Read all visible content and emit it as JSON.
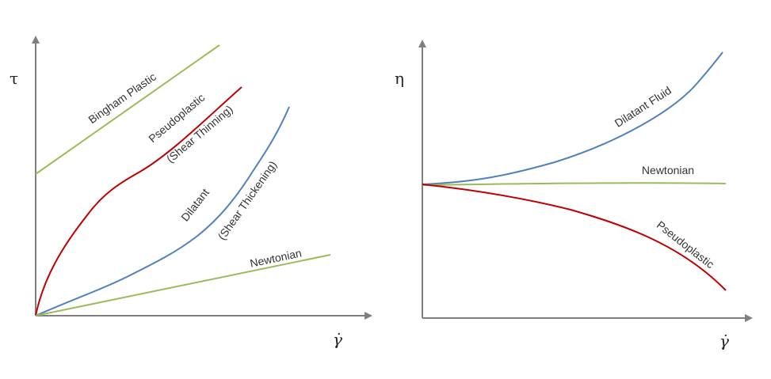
{
  "left_panel": {
    "y_axis_label": "τ",
    "x_axis_label": "γ̇",
    "curves": [
      {
        "label": "Bingham Plastic"
      },
      {
        "label": "Pseudoplastic",
        "sublabel": "(Shear Thinning)"
      },
      {
        "label": "Dilatant",
        "sublabel": "(Shear Thickening)"
      },
      {
        "label": "Newtonian"
      }
    ]
  },
  "right_panel": {
    "y_axis_label": "η",
    "x_axis_label": "γ̇",
    "curves": [
      {
        "label": "Dilatant Fluid"
      },
      {
        "label": "Newtonian"
      },
      {
        "label": "Pseudoplastic"
      }
    ]
  }
}
